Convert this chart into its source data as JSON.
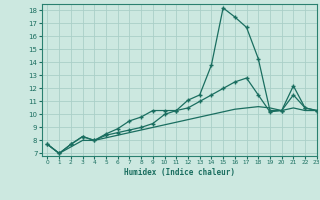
{
  "xlabel": "Humidex (Indice chaleur)",
  "bg_color": "#cce8e0",
  "grid_color": "#aacfc8",
  "line_color": "#1a6e60",
  "spine_color": "#2a8070",
  "xlim": [
    -0.5,
    23
  ],
  "ylim": [
    6.8,
    18.5
  ],
  "xticks": [
    0,
    1,
    2,
    3,
    4,
    5,
    6,
    7,
    8,
    9,
    10,
    11,
    12,
    13,
    14,
    15,
    16,
    17,
    18,
    19,
    20,
    21,
    22,
    23
  ],
  "yticks": [
    7,
    8,
    9,
    10,
    11,
    12,
    13,
    14,
    15,
    16,
    17,
    18
  ],
  "line1_x": [
    0,
    1,
    2,
    3,
    4,
    5,
    6,
    7,
    8,
    9,
    10,
    11,
    12,
    13,
    14,
    15,
    16,
    17,
    18,
    19,
    20,
    21,
    22,
    23
  ],
  "line1_y": [
    7.7,
    7.0,
    7.7,
    8.3,
    8.0,
    8.5,
    8.9,
    9.5,
    9.8,
    10.3,
    10.3,
    10.3,
    11.1,
    11.5,
    13.8,
    18.2,
    17.5,
    16.7,
    14.3,
    10.3,
    10.3,
    12.2,
    10.5,
    10.3
  ],
  "line2_x": [
    0,
    1,
    2,
    3,
    4,
    5,
    6,
    7,
    8,
    9,
    10,
    11,
    12,
    13,
    14,
    15,
    16,
    17,
    18,
    19,
    20,
    21,
    22,
    23
  ],
  "line2_y": [
    7.7,
    7.0,
    7.7,
    8.3,
    8.0,
    8.4,
    8.6,
    8.8,
    9.0,
    9.3,
    10.0,
    10.3,
    10.5,
    11.0,
    11.5,
    12.0,
    12.5,
    12.8,
    11.5,
    10.2,
    10.3,
    11.5,
    10.5,
    10.3
  ],
  "line3_x": [
    0,
    1,
    2,
    3,
    4,
    5,
    6,
    7,
    8,
    9,
    10,
    11,
    12,
    13,
    14,
    15,
    16,
    17,
    18,
    19,
    20,
    21,
    22,
    23
  ],
  "line3_y": [
    7.7,
    7.0,
    7.5,
    8.0,
    8.0,
    8.2,
    8.4,
    8.6,
    8.8,
    9.0,
    9.2,
    9.4,
    9.6,
    9.8,
    10.0,
    10.2,
    10.4,
    10.5,
    10.6,
    10.5,
    10.3,
    10.5,
    10.3,
    10.3
  ]
}
